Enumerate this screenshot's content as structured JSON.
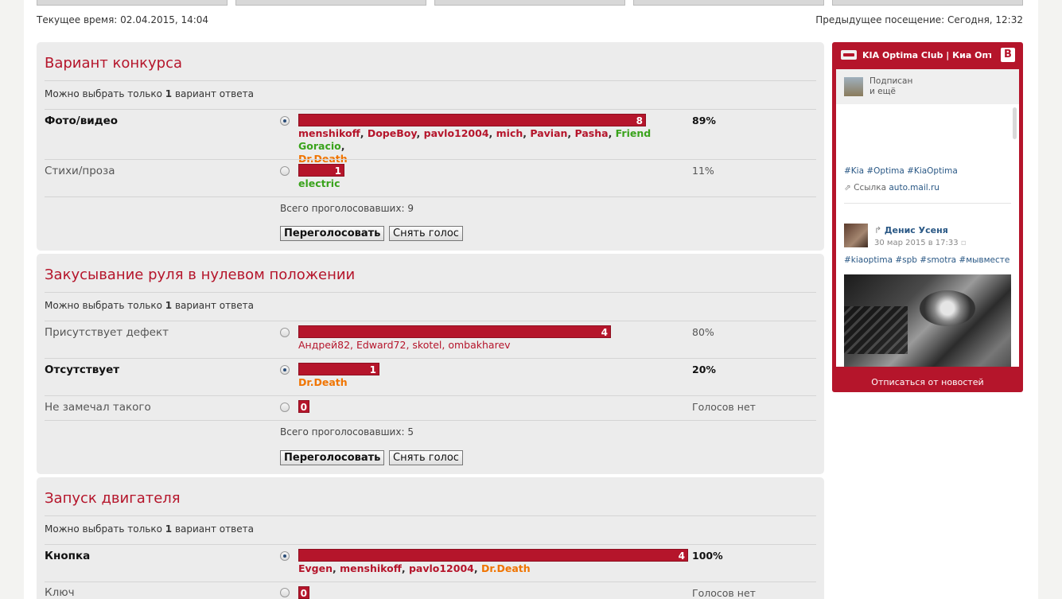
{
  "header": {
    "current_time": "Текущее время: 02.04.2015, 14:04",
    "previous_visit": "Предыдущее посещение: Сегодня, 12:32"
  },
  "polls": [
    {
      "title": "Вариант конкурса",
      "hint_prefix": "Можно выбрать только ",
      "hint_count": "1",
      "hint_suffix": " вариант ответа",
      "options": [
        {
          "label": "Фото/видео",
          "selected": true,
          "votes": "8",
          "share": 0.89,
          "percent": "89%"
        },
        {
          "label": "Стихи/проза",
          "selected": false,
          "votes": "1",
          "share": 0.11,
          "percent": "11%"
        }
      ],
      "voters_1": [
        "menshikoff",
        "DopeBoy",
        "pavlo12004",
        "mich",
        "Pavian",
        "Pasha",
        "Friend Goracio",
        "Dr.Death"
      ],
      "voters_2": [
        "electric"
      ],
      "total": "Всего проголосовавших: 9",
      "revote": "Переголосовать",
      "remove": "Снять голос"
    },
    {
      "title": "Закусывание руля в нулевом положении",
      "hint_prefix": "Можно выбрать только ",
      "hint_count": "1",
      "hint_suffix": " вариант ответа",
      "options": [
        {
          "label": "Присутствует дефект",
          "selected": false,
          "votes": "4",
          "share": 0.8,
          "percent": "80%"
        },
        {
          "label": "Отсутствует",
          "selected": true,
          "votes": "1",
          "share": 0.2,
          "percent": "20%"
        },
        {
          "label": "Не замечал такого",
          "selected": false,
          "votes": "0",
          "share": 0,
          "percent": "Голосов нет"
        }
      ],
      "voters_1": "Андрей82, Edward72, skotel, ombakharev",
      "voters_2": "Dr.Death",
      "total": "Всего проголосовавших: 5",
      "revote": "Переголосовать",
      "remove": "Снять голос"
    },
    {
      "title": "Запуск двигателя",
      "hint_prefix": "Можно выбрать только ",
      "hint_count": "1",
      "hint_suffix": " вариант ответа",
      "options": [
        {
          "label": "Кнопка",
          "selected": true,
          "votes": "4",
          "share": 1.0,
          "percent": "100%"
        },
        {
          "label": "Ключ",
          "selected": false,
          "votes": "0",
          "share": 0,
          "percent": "Голосов нет"
        }
      ],
      "voters_1": [
        "Evgen",
        "menshikoff",
        "pavlo12004",
        "Dr.Death"
      ]
    }
  ],
  "vk_widget": {
    "title": "KIA Optima Club | Киа Опт...",
    "badge": "B",
    "subscribed": "Подписан",
    "and_more": "и ещё",
    "tags1": "#Kia #Optima #KiaOptima",
    "link_label": "Ссылка ",
    "link_domain": "auto.mail.ru",
    "author": "Денис Усеня",
    "date": "30 мар 2015 в 17:33",
    "tags2": "#kiaoptima #spb #smotra #мывместе",
    "unsubscribe": "Отписаться от новостей"
  },
  "colors": {
    "accent": "#b5152b",
    "voter_green": "#3aa31c",
    "voter_orange": "#f07400",
    "vk_link": "#2a5885"
  }
}
